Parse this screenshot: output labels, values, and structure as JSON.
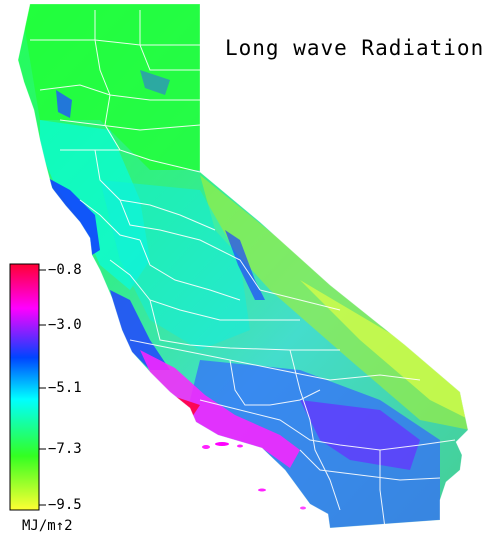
{
  "title": "Long wave Radiation",
  "legend": {
    "units": "MJ/m↑2",
    "ticks": [
      "−0.8",
      "−3.0",
      "−5.1",
      "−7.3",
      "−9.5"
    ],
    "range": [
      -9.5,
      -0.8
    ],
    "colors": [
      "#ffff33",
      "#33ff22",
      "#00ffff",
      "#0044ff",
      "#ff00ff",
      "#ff0033"
    ]
  },
  "colors": {
    "county_lines": "#ffffff",
    "background": "#ffffff"
  }
}
